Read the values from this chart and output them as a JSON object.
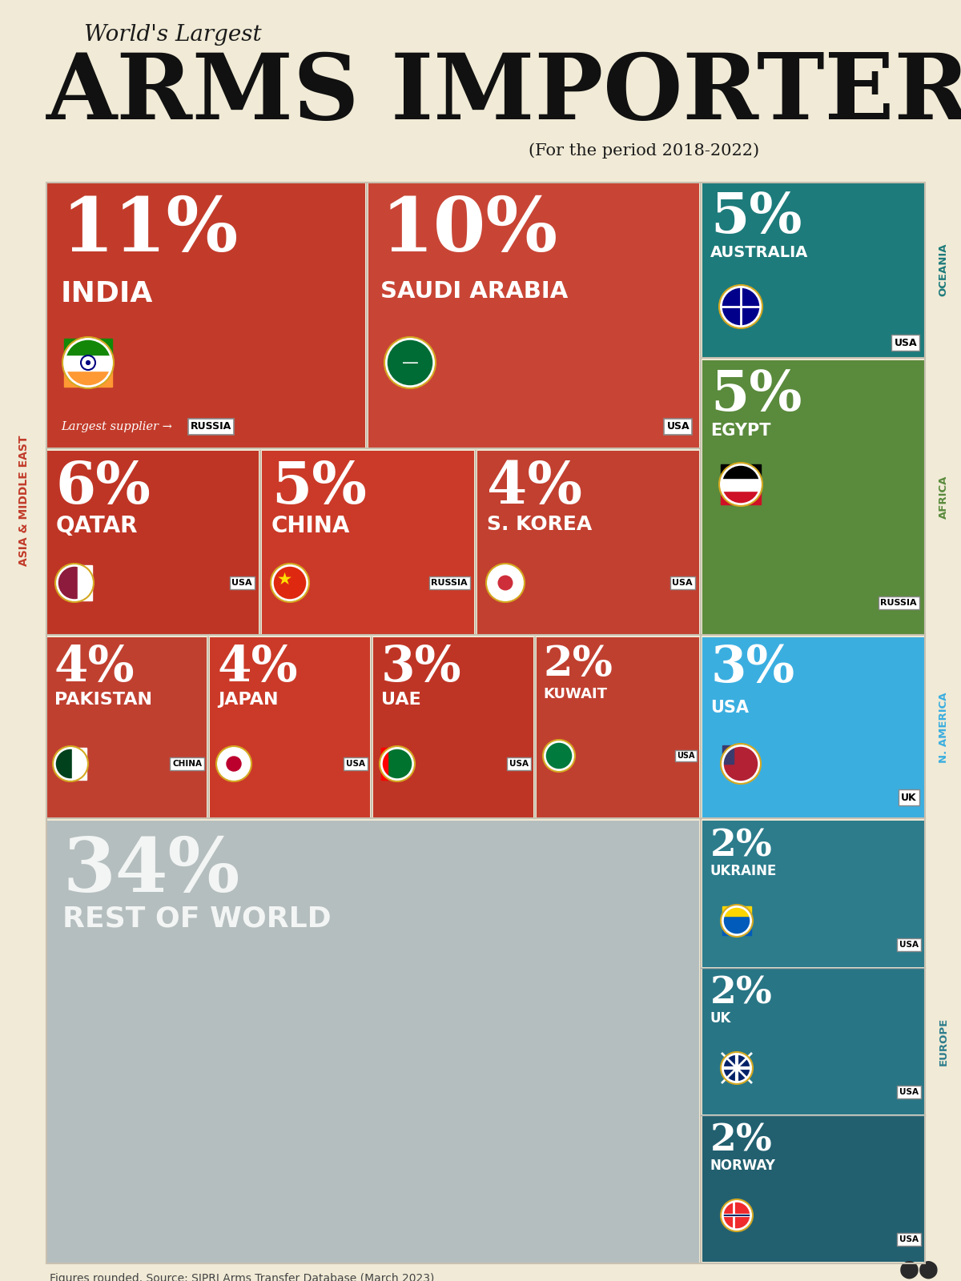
{
  "bg_color": "#f0ead6",
  "title_small": "World's Largest",
  "title_large": "ARMS IMPORTERS",
  "title_period": "(For the period 2018-2022)",
  "source_text": "Figures rounded. Source: SIPRI Arms Transfer Database (March 2023)",
  "colors": {
    "india": "#c23b2a",
    "saudi": "#c84535",
    "qatar": "#bf3525",
    "china": "#cb3a28",
    "skorea": "#c24030",
    "pakistan": "#c04030",
    "japan": "#cb3a28",
    "uae": "#bf3525",
    "kuwait": "#c04030",
    "rest": "#b5bebe",
    "oceania": "#1e7b7b",
    "africa": "#5a8a3c",
    "n_america": "#3baee0",
    "europe": "#2c7c8c"
  }
}
